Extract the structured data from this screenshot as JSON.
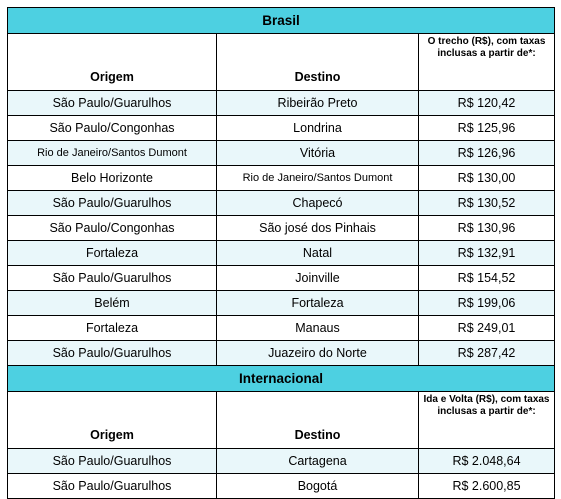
{
  "sections": [
    {
      "title": "Brasil",
      "headers": {
        "origin": "Origem",
        "destination": "Destino",
        "price": "O trecho (R$), com taxas inclusas a partir de*:"
      },
      "rows": [
        {
          "origin": "São Paulo/Guarulhos",
          "destination": "Ribeirão Preto",
          "price": "R$ 120,42"
        },
        {
          "origin": "São Paulo/Congonhas",
          "destination": "Londrina",
          "price": "R$ 125,96"
        },
        {
          "origin": "Rio de Janeiro/Santos Dumont",
          "destination": "Vitória",
          "price": "R$ 126,96"
        },
        {
          "origin": "Belo Horizonte",
          "destination": "Rio de Janeiro/Santos Dumont",
          "price": "R$ 130,00"
        },
        {
          "origin": "São Paulo/Guarulhos",
          "destination": "Chapecó",
          "price": "R$ 130,52"
        },
        {
          "origin": "São Paulo/Congonhas",
          "destination": "São josé dos Pinhais",
          "price": "R$ 130,96"
        },
        {
          "origin": "Fortaleza",
          "destination": "Natal",
          "price": "R$ 132,91"
        },
        {
          "origin": "São Paulo/Guarulhos",
          "destination": "Joinville",
          "price": "R$ 154,52"
        },
        {
          "origin": "Belém",
          "destination": "Fortaleza",
          "price": "R$ 199,06"
        },
        {
          "origin": "Fortaleza",
          "destination": "Manaus",
          "price": "R$ 249,01"
        },
        {
          "origin": "São Paulo/Guarulhos",
          "destination": "Juazeiro do Norte",
          "price": "R$ 287,42"
        }
      ]
    },
    {
      "title": "Internacional",
      "headers": {
        "origin": "Origem",
        "destination": "Destino",
        "price": "Ida e Volta (R$), com taxas inclusas a partir de*:"
      },
      "rows": [
        {
          "origin": "São Paulo/Guarulhos",
          "destination": "Cartagena",
          "price": "R$ 2.048,64"
        },
        {
          "origin": "São Paulo/Guarulhos",
          "destination": "Bogotá",
          "price": "R$ 2.600,85"
        }
      ]
    }
  ],
  "colors": {
    "section_header": "#4dd0e1",
    "alt_row": "#e9f7fa",
    "border": "#000000"
  }
}
